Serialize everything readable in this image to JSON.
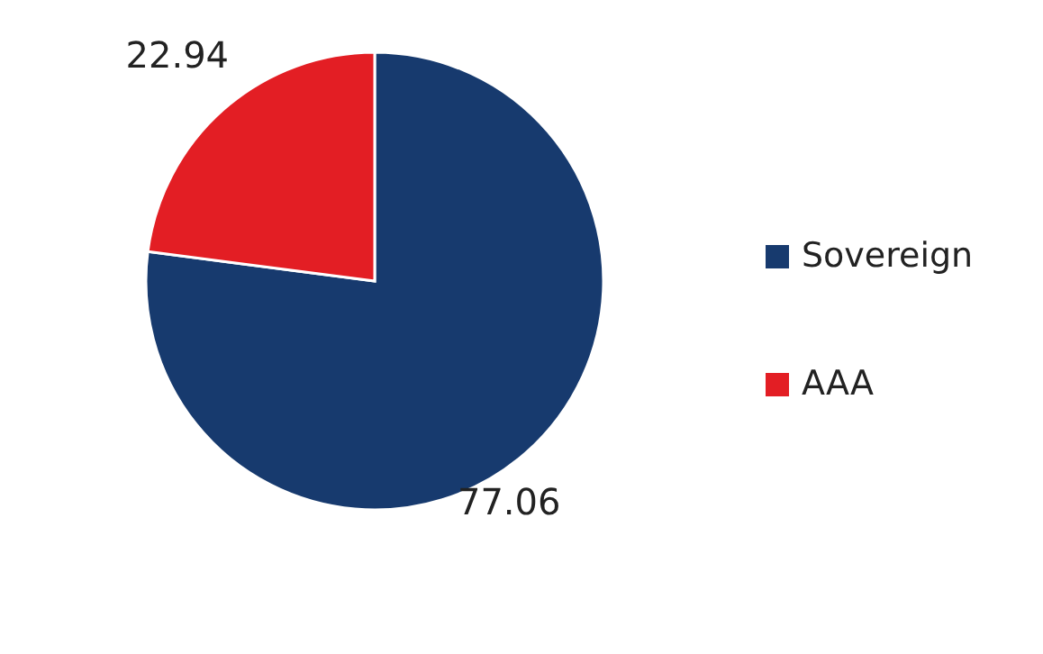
{
  "chart_data": {
    "type": "pie",
    "categories": [
      "Sovereign",
      "AAA"
    ],
    "values": [
      77.06,
      22.94
    ],
    "colors": [
      "#173a6e",
      "#e31e24"
    ],
    "data_labels": true,
    "legend": "right"
  }
}
